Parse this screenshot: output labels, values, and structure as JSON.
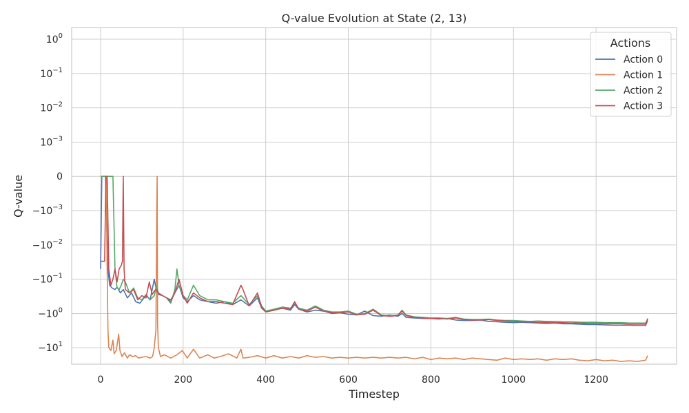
{
  "chart_data": {
    "type": "line",
    "title": "Q-value Evolution at State (2, 13)",
    "xlabel": "Timestep",
    "ylabel": "Q-value",
    "xlim": [
      -70,
      1395
    ],
    "ylim": [
      -30,
      2.2
    ],
    "yscale": "symlog",
    "linthresh": 0.001,
    "grid": true,
    "x_ticks": [
      0,
      200,
      400,
      600,
      800,
      1000,
      1200
    ],
    "x_tick_labels": [
      "0",
      "200",
      "400",
      "600",
      "800",
      "1000",
      "1200"
    ],
    "y_ticks": [
      {
        "value": 1,
        "base": "10",
        "exp": "0"
      },
      {
        "value": 0.1,
        "base": "10",
        "exp": "−1"
      },
      {
        "value": 0.01,
        "base": "10",
        "exp": "−2"
      },
      {
        "value": 0.001,
        "base": "10",
        "exp": "−3"
      },
      {
        "value": 0,
        "base": "0",
        "exp": ""
      },
      {
        "value": -0.001,
        "base": "−10",
        "exp": "−3"
      },
      {
        "value": -0.01,
        "base": "−10",
        "exp": "−2"
      },
      {
        "value": -0.1,
        "base": "−10",
        "exp": "−1"
      },
      {
        "value": -1,
        "base": "−10",
        "exp": "0"
      },
      {
        "value": -10,
        "base": "−10",
        "exp": "1"
      }
    ],
    "legend": {
      "title": "Actions",
      "placement": "top-right"
    },
    "series": [
      {
        "name": "Action 0",
        "color": "#4c72b0",
        "x": [
          0,
          3,
          7,
          12,
          18,
          22,
          28,
          35,
          40,
          48,
          55,
          65,
          75,
          85,
          95,
          110,
          120,
          130,
          135,
          140,
          150,
          160,
          170,
          180,
          190,
          200,
          210,
          225,
          240,
          260,
          280,
          300,
          320,
          340,
          360,
          380,
          390,
          400,
          420,
          440,
          460,
          470,
          480,
          500,
          520,
          540,
          560,
          580,
          600,
          620,
          640,
          660,
          680,
          700,
          720,
          730,
          740,
          760,
          780,
          800,
          820,
          840,
          860,
          880,
          900,
          920,
          940,
          960,
          980,
          1000,
          1020,
          1040,
          1060,
          1080,
          1100,
          1120,
          1140,
          1160,
          1180,
          1200,
          1220,
          1240,
          1260,
          1280,
          1300,
          1320,
          1325
        ],
        "y": [
          -0.05,
          0,
          0,
          0,
          -0.05,
          -0.15,
          -0.18,
          -0.2,
          -0.17,
          -0.25,
          -0.2,
          -0.35,
          -0.25,
          -0.45,
          -0.5,
          -0.3,
          -0.4,
          -0.1,
          -0.2,
          -0.28,
          -0.3,
          -0.35,
          -0.4,
          -0.25,
          -0.15,
          -0.35,
          -0.45,
          -0.3,
          -0.4,
          -0.45,
          -0.5,
          -0.45,
          -0.55,
          -0.4,
          -0.6,
          -0.35,
          -0.7,
          -0.9,
          -0.8,
          -0.7,
          -0.8,
          -0.55,
          -0.75,
          -0.9,
          -0.8,
          -0.85,
          -1.0,
          -0.95,
          -1.05,
          -1.1,
          -0.85,
          -1.15,
          -1.2,
          -1.1,
          -1.2,
          -1.0,
          -1.3,
          -1.35,
          -1.4,
          -1.4,
          -1.45,
          -1.4,
          -1.55,
          -1.6,
          -1.6,
          -1.55,
          -1.7,
          -1.75,
          -1.8,
          -1.85,
          -1.8,
          -1.85,
          -1.9,
          -1.95,
          -1.9,
          -2.0,
          -2.0,
          -2.05,
          -2.1,
          -2.1,
          -2.15,
          -2.2,
          -2.2,
          -2.2,
          -2.25,
          -2.25,
          -1.6
        ]
      },
      {
        "name": "Action 1",
        "color": "#dd8452",
        "x": [
          0,
          5,
          10,
          14,
          16,
          18,
          20,
          25,
          30,
          33,
          38,
          44,
          47,
          52,
          58,
          65,
          70,
          78,
          85,
          92,
          100,
          110,
          120,
          126,
          130,
          134,
          136,
          137,
          138,
          140,
          145,
          155,
          170,
          185,
          198,
          210,
          225,
          240,
          260,
          275,
          290,
          310,
          330,
          340,
          345,
          360,
          380,
          400,
          420,
          440,
          460,
          480,
          500,
          520,
          540,
          560,
          580,
          600,
          620,
          640,
          660,
          680,
          700,
          720,
          740,
          760,
          780,
          800,
          820,
          840,
          860,
          880,
          900,
          920,
          940,
          960,
          980,
          1000,
          1020,
          1040,
          1060,
          1080,
          1100,
          1120,
          1140,
          1160,
          1180,
          1200,
          1220,
          1240,
          1260,
          1280,
          1300,
          1310,
          1320,
          1325
        ],
        "y": [
          0,
          0,
          0,
          0,
          -0.05,
          -3,
          -10,
          -12,
          -6,
          -15,
          -12,
          -4,
          -12,
          -18,
          -14,
          -20,
          -16,
          -18,
          -17,
          -20,
          -19,
          -18,
          -20,
          -18,
          -10,
          -3,
          -0.001,
          0,
          -2,
          -10,
          -18,
          -16,
          -20,
          -16,
          -12,
          -20,
          -11,
          -20,
          -16,
          -20,
          -18,
          -15,
          -20,
          -11,
          -20,
          -19,
          -17,
          -20,
          -17,
          -20,
          -18,
          -20,
          -17,
          -19,
          -18,
          -20,
          -19,
          -20,
          -19,
          -20,
          -19,
          -20,
          -19,
          -20,
          -19,
          -21,
          -19,
          -22,
          -20,
          -21,
          -20,
          -22,
          -20,
          -21,
          -22,
          -23,
          -20,
          -22,
          -21,
          -22,
          -21,
          -23,
          -21,
          -22,
          -21,
          -23,
          -24,
          -22,
          -24,
          -23,
          -25,
          -24,
          -25,
          -24,
          -23,
          -17
        ]
      },
      {
        "name": "Action 2",
        "color": "#55a868",
        "x": [
          0,
          5,
          10,
          15,
          22,
          25,
          30,
          35,
          40,
          45,
          50,
          55,
          60,
          70,
          80,
          90,
          100,
          110,
          120,
          130,
          135,
          140,
          150,
          160,
          170,
          180,
          185,
          190,
          200,
          210,
          225,
          240,
          260,
          280,
          300,
          320,
          340,
          360,
          380,
          390,
          400,
          420,
          440,
          460,
          470,
          480,
          500,
          520,
          540,
          560,
          580,
          600,
          620,
          640,
          660,
          680,
          700,
          720,
          730,
          740,
          760,
          780,
          800,
          820,
          840,
          860,
          880,
          900,
          920,
          940,
          960,
          980,
          1000,
          1020,
          1040,
          1060,
          1080,
          1100,
          1120,
          1140,
          1160,
          1180,
          1200,
          1220,
          1240,
          1260,
          1280,
          1300,
          1320,
          1325
        ],
        "y": [
          0,
          0,
          0,
          0,
          0,
          0,
          0,
          -0.05,
          -0.18,
          -0.2,
          -0.15,
          -0.1,
          -0.12,
          -0.25,
          -0.18,
          -0.35,
          -0.4,
          -0.28,
          -0.4,
          -0.3,
          -0.15,
          -0.25,
          -0.3,
          -0.35,
          -0.5,
          -0.2,
          -0.05,
          -0.15,
          -0.3,
          -0.4,
          -0.15,
          -0.3,
          -0.4,
          -0.4,
          -0.45,
          -0.5,
          -0.3,
          -0.55,
          -0.3,
          -0.6,
          -0.85,
          -0.75,
          -0.65,
          -0.7,
          -0.5,
          -0.7,
          -0.8,
          -0.6,
          -0.8,
          -0.9,
          -0.9,
          -0.85,
          -1.05,
          -1.0,
          -0.75,
          -1.1,
          -1.15,
          -1.1,
          -0.8,
          -1.1,
          -1.25,
          -1.3,
          -1.35,
          -1.35,
          -1.4,
          -1.3,
          -1.45,
          -1.5,
          -1.5,
          -1.45,
          -1.55,
          -1.6,
          -1.6,
          -1.65,
          -1.7,
          -1.65,
          -1.7,
          -1.7,
          -1.75,
          -1.75,
          -1.8,
          -1.8,
          -1.8,
          -1.85,
          -1.85,
          -1.85,
          -1.9,
          -1.9,
          -1.9,
          -1.5
        ]
      },
      {
        "name": "Action 3",
        "color": "#c44e52",
        "x": [
          0,
          5,
          10,
          13,
          16,
          20,
          25,
          30,
          35,
          40,
          45,
          50,
          53,
          55,
          57,
          60,
          70,
          80,
          90,
          100,
          110,
          118,
          125,
          130,
          135,
          140,
          150,
          160,
          170,
          180,
          190,
          200,
          210,
          225,
          240,
          260,
          280,
          300,
          320,
          340,
          345,
          360,
          380,
          390,
          400,
          420,
          440,
          460,
          470,
          480,
          500,
          520,
          540,
          560,
          580,
          600,
          620,
          640,
          660,
          680,
          700,
          720,
          730,
          740,
          760,
          780,
          800,
          820,
          840,
          860,
          880,
          900,
          920,
          940,
          960,
          980,
          1000,
          1020,
          1040,
          1060,
          1080,
          1100,
          1120,
          1140,
          1160,
          1180,
          1200,
          1220,
          1240,
          1260,
          1280,
          1300,
          1320,
          1325
        ],
        "y": [
          -0.03,
          -0.03,
          -0.03,
          0,
          0,
          -0.05,
          -0.15,
          -0.1,
          -0.05,
          -0.12,
          -0.05,
          -0.04,
          -0.03,
          0,
          -0.05,
          -0.2,
          -0.25,
          -0.2,
          -0.4,
          -0.3,
          -0.35,
          -0.12,
          -0.28,
          -0.22,
          -0.2,
          -0.25,
          -0.3,
          -0.35,
          -0.45,
          -0.25,
          -0.1,
          -0.3,
          -0.5,
          -0.25,
          -0.35,
          -0.45,
          -0.45,
          -0.5,
          -0.55,
          -0.15,
          -0.2,
          -0.6,
          -0.25,
          -0.65,
          -0.9,
          -0.8,
          -0.7,
          -0.75,
          -0.45,
          -0.75,
          -0.85,
          -0.65,
          -0.85,
          -0.95,
          -0.95,
          -0.9,
          -1.1,
          -1.05,
          -0.8,
          -1.15,
          -1.2,
          -1.15,
          -0.85,
          -1.15,
          -1.3,
          -1.35,
          -1.4,
          -1.4,
          -1.45,
          -1.35,
          -1.5,
          -1.55,
          -1.55,
          -1.5,
          -1.6,
          -1.65,
          -1.7,
          -1.75,
          -1.75,
          -1.8,
          -1.8,
          -1.85,
          -1.85,
          -1.9,
          -1.9,
          -1.95,
          -1.95,
          -2.0,
          -2.0,
          -2.0,
          -2.05,
          -2.05,
          -2.05,
          -1.4
        ]
      }
    ]
  }
}
